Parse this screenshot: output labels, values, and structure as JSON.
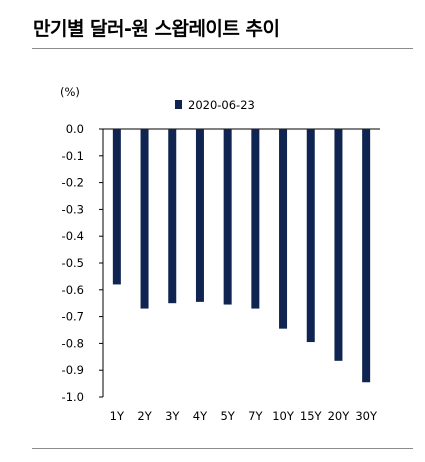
{
  "title": "만기별 달러-원 스왑레이트 추이",
  "chart_data": {
    "type": "bar",
    "title": "만기별 달러-원 스왑레이트 추이",
    "unit": "(%)",
    "categories": [
      "1Y",
      "2Y",
      "3Y",
      "4Y",
      "5Y",
      "7Y",
      "10Y",
      "15Y",
      "20Y",
      "30Y"
    ],
    "series": [
      {
        "name": "2020-06-23",
        "values": [
          -0.58,
          -0.67,
          -0.65,
          -0.645,
          -0.655,
          -0.67,
          -0.745,
          -0.795,
          -0.865,
          -0.945
        ],
        "color": "#0f2450"
      }
    ],
    "ylim": [
      -1.0,
      0.0
    ],
    "yticks": [
      "0.0",
      "-0.1",
      "-0.2",
      "-0.3",
      "-0.4",
      "-0.5",
      "-0.6",
      "-0.7",
      "-0.8",
      "-0.9",
      "-1.0"
    ],
    "xlabel": "",
    "ylabel": "",
    "grid": false,
    "legend": "top"
  }
}
